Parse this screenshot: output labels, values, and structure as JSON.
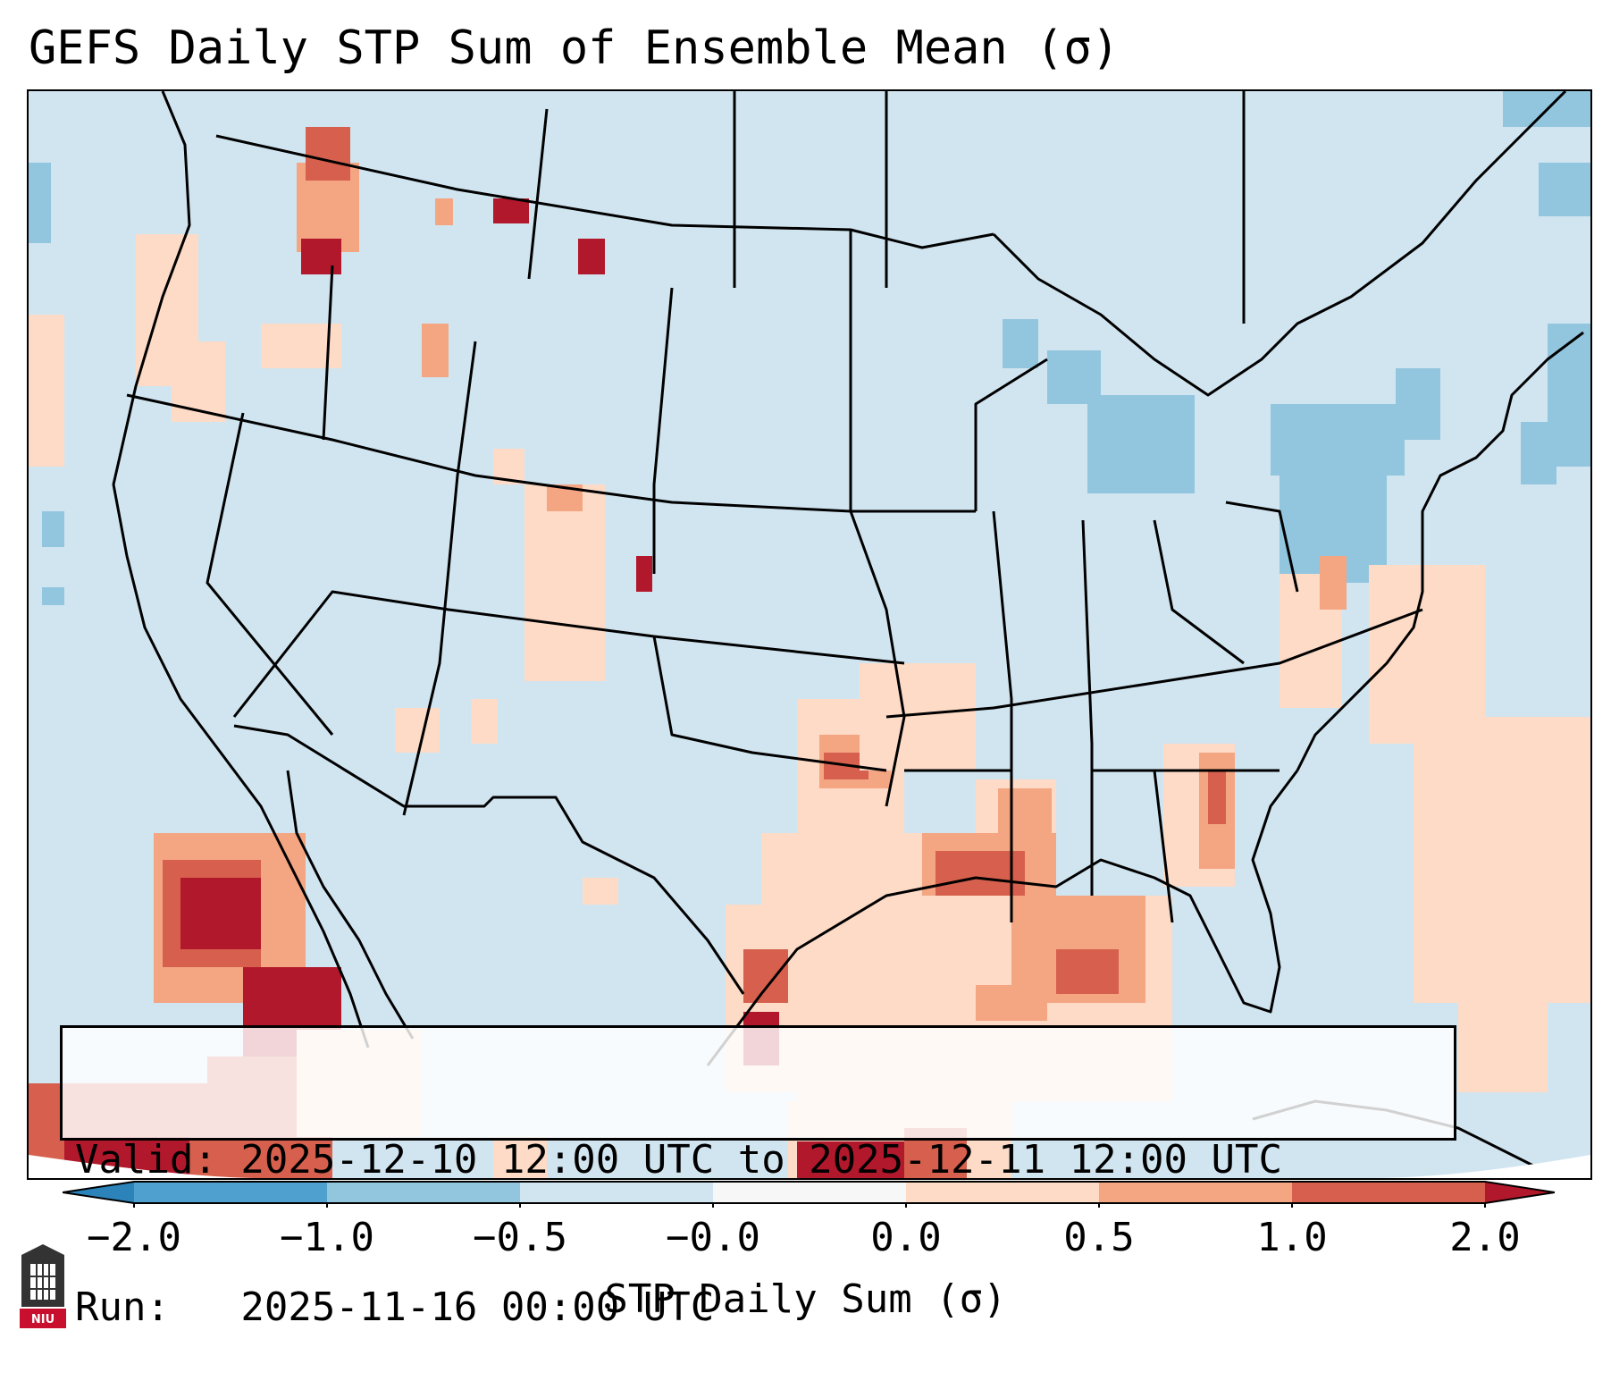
{
  "title": "GEFS Daily STP Sum of Ensemble Mean (σ)",
  "info": {
    "valid_line": "Valid: 2025-12-10 12:00 UTC to 2025-12-11 12:00 UTC",
    "run_line": "Run:   2025-11-16 00:00 UTC"
  },
  "colorbar": {
    "label": "STP Daily Sum (σ)",
    "ticks": [
      "−2.0",
      "−1.0",
      "−0.5",
      "−0.0",
      "0.0",
      "0.5",
      "1.0",
      "2.0"
    ],
    "colors": [
      "#2b83ba",
      "#4f9fcf",
      "#92c5de",
      "#d1e5f0",
      "#f7f7f7",
      "#fddbc7",
      "#f4a582",
      "#d6604d",
      "#b2182b"
    ],
    "extend": "both"
  },
  "map": {
    "projection": "Lambert Conformal, CONUS",
    "background_color": "#d1e5f0",
    "positive_colors": {
      "low": "#fddbc7",
      "mid": "#f4a582",
      "high": "#d6604d",
      "max": "#b2182b"
    },
    "negative_colors": {
      "low": "#92c5de"
    }
  },
  "logo": {
    "text": "NIU",
    "color": "#c8102e"
  }
}
